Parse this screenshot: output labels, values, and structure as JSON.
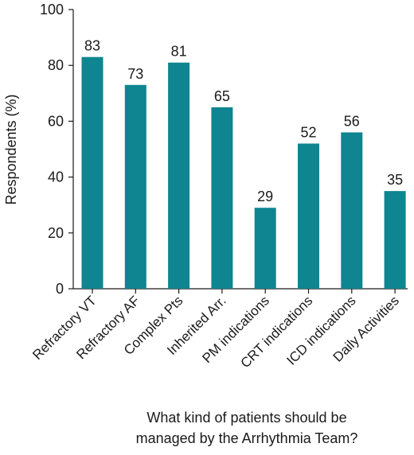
{
  "chart_data": {
    "type": "bar",
    "categories": [
      "Refractory VT",
      "Refractory AF",
      "Complex Pts",
      "Inherited Arr.",
      "PM indications",
      "CRT indications",
      "ICD indications",
      "Daily Activities"
    ],
    "values": [
      83,
      73,
      81,
      65,
      29,
      52,
      56,
      35
    ],
    "data_labels": [
      "83",
      "73",
      "81",
      "65",
      "29",
      "52",
      "56",
      "35"
    ],
    "ylabel": "Respondents (%)",
    "xlabel_lines": [
      "What kind of patients should be",
      "managed by the Arrhythmia Team?"
    ],
    "ylim": [
      0,
      100
    ],
    "yticks": [
      0,
      20,
      40,
      60,
      80,
      100
    ],
    "grid": false,
    "bar_color": "#0e8590"
  }
}
